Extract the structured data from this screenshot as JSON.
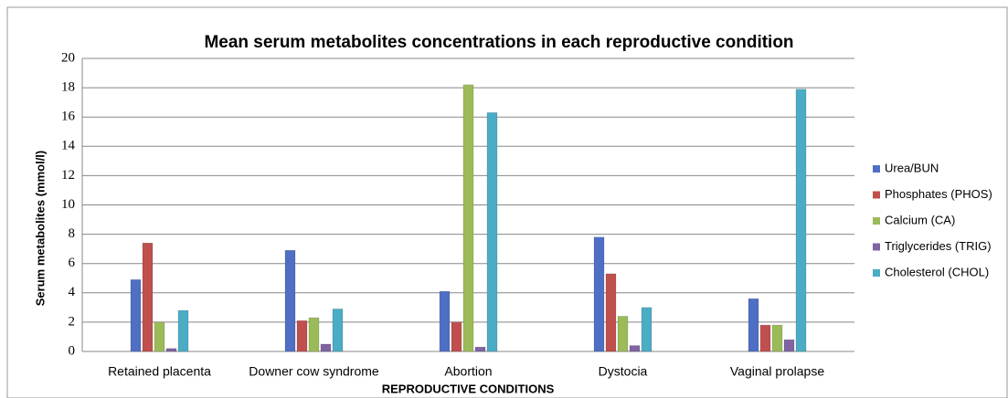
{
  "chart_data": {
    "type": "bar",
    "title": "Mean serum metabolites concentrations in each reproductive condition",
    "xlabel": "REPRODUCTIVE CONDITIONS",
    "ylabel": "Serum metabolites (mmol/l)",
    "categories": [
      "Retained placenta",
      "Downer cow syndrome",
      "Abortion",
      "Dystocia",
      "Vaginal prolapse"
    ],
    "series": [
      {
        "name": "Urea/BUN",
        "color": "#4f6fc4",
        "values": [
          4.9,
          6.9,
          4.1,
          7.8,
          3.6
        ]
      },
      {
        "name": "Phosphates (PHOS)",
        "color": "#c0504d",
        "values": [
          7.4,
          2.1,
          2.0,
          5.3,
          1.8
        ]
      },
      {
        "name": "Calcium (CA)",
        "color": "#9bbb59",
        "values": [
          2.0,
          2.3,
          18.2,
          2.4,
          1.8
        ]
      },
      {
        "name": "Triglycerides (TRIG)",
        "color": "#8064a2",
        "values": [
          0.2,
          0.5,
          0.3,
          0.4,
          0.8
        ]
      },
      {
        "name": "Cholesterol (CHOL)",
        "color": "#4bacc6",
        "values": [
          2.8,
          2.9,
          16.3,
          3.0,
          17.9
        ]
      }
    ],
    "ylim": [
      0,
      20
    ],
    "yticks": [
      0,
      2,
      4,
      6,
      8,
      10,
      12,
      14,
      16,
      18,
      20
    ],
    "grid": true,
    "legend": "right"
  }
}
